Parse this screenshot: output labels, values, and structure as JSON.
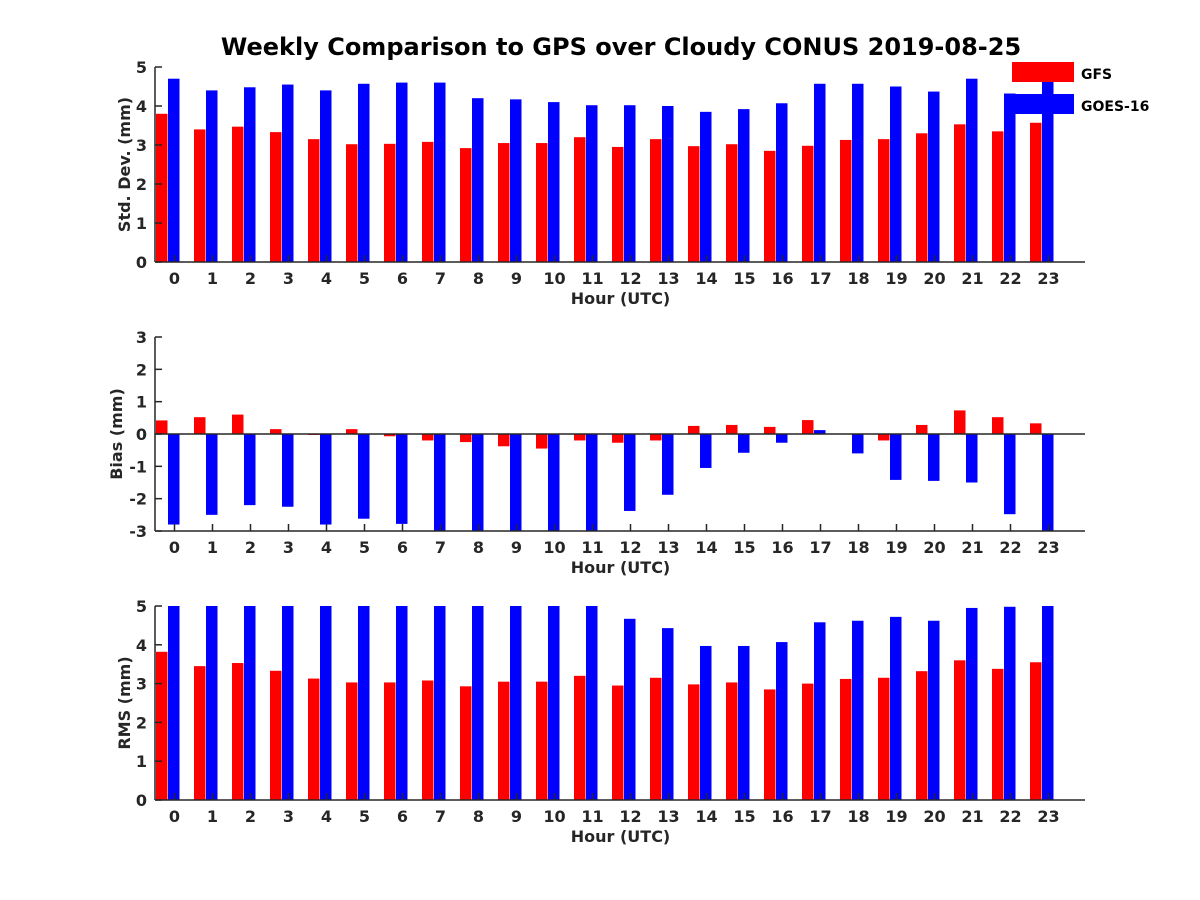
{
  "title": "Weekly Comparison to GPS over Cloudy CONUS 2019-08-25",
  "legend": [
    {
      "name": "GFS",
      "color": "#ff0000"
    },
    {
      "name": "GOES-16",
      "color": "#0000ff"
    }
  ],
  "chart_data": [
    {
      "type": "bar",
      "xlabel": "Hour (UTC)",
      "ylabel": "Std. Dev. (mm)",
      "ylim": [
        0,
        5
      ],
      "yticks": [
        0,
        1,
        2,
        3,
        4,
        5
      ],
      "categories": [
        "0",
        "1",
        "2",
        "3",
        "4",
        "5",
        "6",
        "7",
        "8",
        "9",
        "10",
        "11",
        "12",
        "13",
        "14",
        "15",
        "16",
        "17",
        "18",
        "19",
        "20",
        "21",
        "22",
        "23"
      ],
      "series": [
        {
          "name": "GFS",
          "color": "#ff0000",
          "values": [
            3.8,
            3.4,
            3.47,
            3.33,
            3.15,
            3.02,
            3.03,
            3.08,
            2.92,
            3.05,
            3.05,
            3.2,
            2.95,
            3.15,
            2.97,
            3.02,
            2.85,
            2.98,
            3.13,
            3.15,
            3.3,
            3.53,
            3.35,
            3.57
          ]
        },
        {
          "name": "GOES-16",
          "color": "#0000ff",
          "values": [
            4.7,
            4.4,
            4.48,
            4.55,
            4.4,
            4.57,
            4.6,
            4.6,
            4.2,
            4.17,
            4.1,
            4.02,
            4.02,
            4.0,
            3.85,
            3.92,
            4.07,
            4.57,
            4.57,
            4.5,
            4.37,
            4.7,
            4.32,
            4.62
          ]
        }
      ]
    },
    {
      "type": "bar",
      "xlabel": "Hour (UTC)",
      "ylabel": "Bias (mm)",
      "ylim": [
        -3,
        3
      ],
      "yticks": [
        -3,
        -2,
        -1,
        0,
        1,
        2,
        3
      ],
      "categories": [
        "0",
        "1",
        "2",
        "3",
        "4",
        "5",
        "6",
        "7",
        "8",
        "9",
        "10",
        "11",
        "12",
        "13",
        "14",
        "15",
        "16",
        "17",
        "18",
        "19",
        "20",
        "21",
        "22",
        "23"
      ],
      "series": [
        {
          "name": "GFS",
          "color": "#ff0000",
          "values": [
            0.42,
            0.52,
            0.6,
            0.15,
            -0.03,
            0.15,
            -0.07,
            -0.2,
            -0.25,
            -0.38,
            -0.45,
            -0.2,
            -0.27,
            -0.2,
            0.25,
            0.28,
            0.22,
            0.43,
            0.0,
            -0.2,
            0.28,
            0.73,
            0.52,
            0.33
          ]
        },
        {
          "name": "GOES-16",
          "color": "#0000ff",
          "values": [
            -2.8,
            -2.5,
            -2.2,
            -2.25,
            -2.8,
            -2.62,
            -2.78,
            -3.0,
            -3.0,
            -3.0,
            -3.0,
            -3.0,
            -2.38,
            -1.88,
            -1.05,
            -0.58,
            -0.27,
            0.12,
            -0.6,
            -1.42,
            -1.45,
            -1.5,
            -2.48,
            -3.0
          ]
        }
      ]
    },
    {
      "type": "bar",
      "xlabel": "Hour (UTC)",
      "ylabel": "RMS (mm)",
      "ylim": [
        0,
        5
      ],
      "yticks": [
        0,
        1,
        2,
        3,
        4,
        5
      ],
      "categories": [
        "0",
        "1",
        "2",
        "3",
        "4",
        "5",
        "6",
        "7",
        "8",
        "9",
        "10",
        "11",
        "12",
        "13",
        "14",
        "15",
        "16",
        "17",
        "18",
        "19",
        "20",
        "21",
        "22",
        "23"
      ],
      "series": [
        {
          "name": "GFS",
          "color": "#ff0000",
          "values": [
            3.82,
            3.45,
            3.53,
            3.33,
            3.13,
            3.03,
            3.03,
            3.08,
            2.93,
            3.05,
            3.05,
            3.2,
            2.95,
            3.15,
            2.98,
            3.03,
            2.85,
            3.0,
            3.12,
            3.15,
            3.32,
            3.6,
            3.38,
            3.55
          ]
        },
        {
          "name": "GOES-16",
          "color": "#0000ff",
          "values": [
            5.0,
            5.0,
            5.0,
            5.0,
            5.0,
            5.0,
            5.0,
            5.0,
            5.0,
            5.0,
            5.0,
            5.0,
            4.67,
            4.43,
            3.97,
            3.97,
            4.07,
            4.58,
            4.62,
            4.72,
            4.62,
            4.95,
            4.98,
            5.0
          ]
        }
      ]
    }
  ]
}
